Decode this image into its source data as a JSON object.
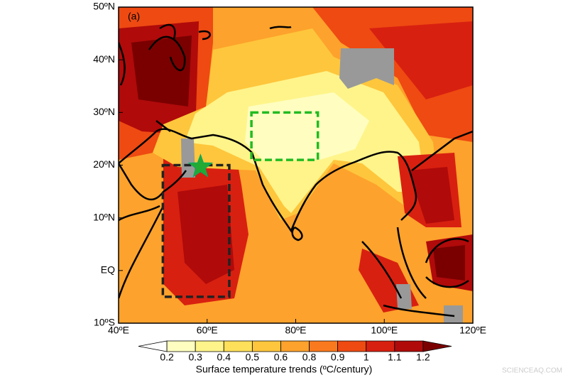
{
  "chart_data": {
    "type": "map",
    "panel_label": "(a)",
    "xlim": [
      40,
      120
    ],
    "ylim": [
      -10,
      50
    ],
    "xticks": [
      {
        "value": 40,
        "label": "40ºE"
      },
      {
        "value": 60,
        "label": "60ºE"
      },
      {
        "value": 80,
        "label": "80ºE"
      },
      {
        "value": 100,
        "label": "100ºE"
      },
      {
        "value": 120,
        "label": "120ºE"
      }
    ],
    "yticks": [
      {
        "value": -10,
        "label": "10ºS"
      },
      {
        "value": 0,
        "label": "EQ"
      },
      {
        "value": 10,
        "label": "10ºN"
      },
      {
        "value": 20,
        "label": "20ºN"
      },
      {
        "value": 30,
        "label": "30ºN"
      },
      {
        "value": 40,
        "label": "40ºN"
      },
      {
        "value": 50,
        "label": "50ºN"
      }
    ],
    "regions": [
      {
        "lon": [
          70,
          85
        ],
        "lat": [
          21,
          30
        ],
        "color": "#22bb22"
      },
      {
        "lon": [
          50,
          65
        ],
        "lat": [
          -5,
          20
        ],
        "color": "#222222"
      }
    ],
    "marker": {
      "lon": 58.5,
      "lat": 19.7,
      "color": "#22aa33"
    },
    "colorbar": {
      "label": "Surface temperature trends (ºC/century)",
      "levels": [
        0.2,
        0.3,
        0.4,
        0.5,
        0.6,
        0.8,
        0.9,
        1.0,
        1.1,
        1.2
      ],
      "colors": [
        "#ffffff",
        "#fffec0",
        "#fff48a",
        "#ffe05a",
        "#fec63c",
        "#fda22c",
        "#f97a1e",
        "#ee4a12",
        "#d82010",
        "#b00a0a",
        "#7a0000"
      ]
    },
    "watermark": "SCIENCEAQ.COM"
  }
}
